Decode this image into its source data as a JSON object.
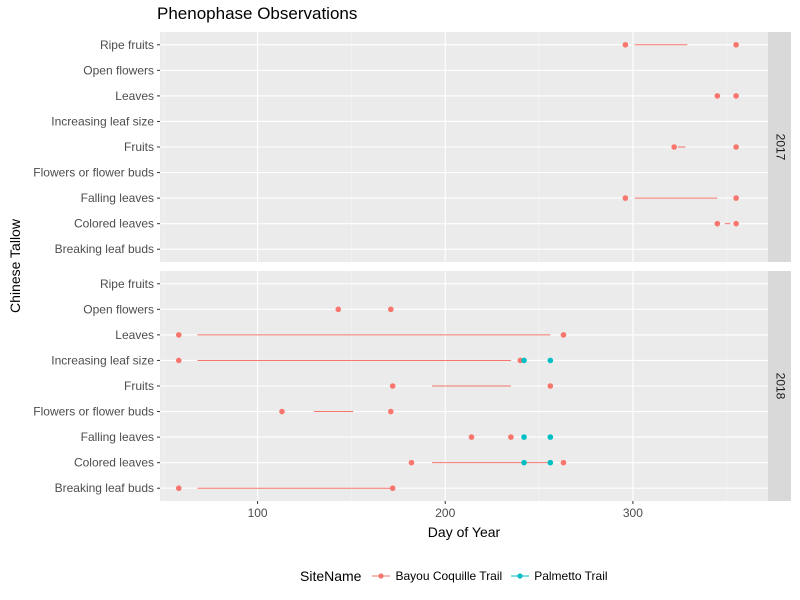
{
  "chart_data": {
    "type": "dot-range",
    "title": "Phenophase Observations",
    "xlabel": "Day of Year",
    "ylabel": "Chinese Tallow",
    "xlim": [
      48,
      372
    ],
    "xticks": [
      100,
      200,
      300
    ],
    "categories": [
      "Breaking leaf buds",
      "Colored leaves",
      "Falling leaves",
      "Flowers or flower buds",
      "Fruits",
      "Increasing leaf size",
      "Leaves",
      "Open flowers",
      "Ripe fruits"
    ],
    "legend": {
      "title": "SiteName",
      "position": "bottom",
      "entries": [
        {
          "name": "Bayou Coquille Trail",
          "color": "#F8766D"
        },
        {
          "name": "Palmetto Trail",
          "color": "#00BFC4"
        }
      ]
    },
    "facets": [
      {
        "label": "2017",
        "segments": [
          {
            "category": "Ripe fruits",
            "site": "Bayou Coquille Trail",
            "x1": 301,
            "x2": 329
          },
          {
            "category": "Fruits",
            "site": "Bayou Coquille Trail",
            "x1": 324,
            "x2": 328
          },
          {
            "category": "Falling leaves",
            "site": "Bayou Coquille Trail",
            "x1": 301,
            "x2": 345
          },
          {
            "category": "Colored leaves",
            "site": "Bayou Coquille Trail",
            "x1": 349,
            "x2": 352
          }
        ],
        "points": [
          {
            "category": "Ripe fruits",
            "site": "Bayou Coquille Trail",
            "x": 296
          },
          {
            "category": "Ripe fruits",
            "site": "Bayou Coquille Trail",
            "x": 355
          },
          {
            "category": "Leaves",
            "site": "Bayou Coquille Trail",
            "x": 345
          },
          {
            "category": "Leaves",
            "site": "Bayou Coquille Trail",
            "x": 355
          },
          {
            "category": "Fruits",
            "site": "Bayou Coquille Trail",
            "x": 322
          },
          {
            "category": "Fruits",
            "site": "Bayou Coquille Trail",
            "x": 355
          },
          {
            "category": "Falling leaves",
            "site": "Bayou Coquille Trail",
            "x": 296
          },
          {
            "category": "Falling leaves",
            "site": "Bayou Coquille Trail",
            "x": 355
          },
          {
            "category": "Colored leaves",
            "site": "Bayou Coquille Trail",
            "x": 345
          },
          {
            "category": "Colored leaves",
            "site": "Bayou Coquille Trail",
            "x": 355
          }
        ]
      },
      {
        "label": "2018",
        "segments": [
          {
            "category": "Leaves",
            "site": "Bayou Coquille Trail",
            "x1": 68,
            "x2": 256
          },
          {
            "category": "Increasing leaf size",
            "site": "Bayou Coquille Trail",
            "x1": 68,
            "x2": 235
          },
          {
            "category": "Fruits",
            "site": "Bayou Coquille Trail",
            "x1": 193,
            "x2": 235
          },
          {
            "category": "Flowers or flower buds",
            "site": "Bayou Coquille Trail",
            "x1": 130,
            "x2": 151
          },
          {
            "category": "Colored leaves",
            "site": "Bayou Coquille Trail",
            "x1": 193,
            "x2": 256
          },
          {
            "category": "Breaking leaf buds",
            "site": "Bayou Coquille Trail",
            "x1": 68,
            "x2": 172
          }
        ],
        "points": [
          {
            "category": "Open flowers",
            "site": "Bayou Coquille Trail",
            "x": 143
          },
          {
            "category": "Open flowers",
            "site": "Bayou Coquille Trail",
            "x": 171
          },
          {
            "category": "Leaves",
            "site": "Bayou Coquille Trail",
            "x": 58
          },
          {
            "category": "Leaves",
            "site": "Bayou Coquille Trail",
            "x": 263
          },
          {
            "category": "Increasing leaf size",
            "site": "Bayou Coquille Trail",
            "x": 58
          },
          {
            "category": "Increasing leaf size",
            "site": "Bayou Coquille Trail",
            "x": 240
          },
          {
            "category": "Increasing leaf size",
            "site": "Palmetto Trail",
            "x": 242
          },
          {
            "category": "Increasing leaf size",
            "site": "Palmetto Trail",
            "x": 256
          },
          {
            "category": "Fruits",
            "site": "Bayou Coquille Trail",
            "x": 172
          },
          {
            "category": "Fruits",
            "site": "Bayou Coquille Trail",
            "x": 256
          },
          {
            "category": "Flowers or flower buds",
            "site": "Bayou Coquille Trail",
            "x": 113
          },
          {
            "category": "Flowers or flower buds",
            "site": "Bayou Coquille Trail",
            "x": 171
          },
          {
            "category": "Falling leaves",
            "site": "Bayou Coquille Trail",
            "x": 214
          },
          {
            "category": "Falling leaves",
            "site": "Bayou Coquille Trail",
            "x": 235
          },
          {
            "category": "Falling leaves",
            "site": "Palmetto Trail",
            "x": 242
          },
          {
            "category": "Falling leaves",
            "site": "Palmetto Trail",
            "x": 256
          },
          {
            "category": "Colored leaves",
            "site": "Bayou Coquille Trail",
            "x": 182
          },
          {
            "category": "Colored leaves",
            "site": "Bayou Coquille Trail",
            "x": 263
          },
          {
            "category": "Colored leaves",
            "site": "Palmetto Trail",
            "x": 242
          },
          {
            "category": "Colored leaves",
            "site": "Palmetto Trail",
            "x": 256
          },
          {
            "category": "Breaking leaf buds",
            "site": "Bayou Coquille Trail",
            "x": 58
          },
          {
            "category": "Breaking leaf buds",
            "site": "Bayou Coquille Trail",
            "x": 172
          }
        ]
      }
    ]
  }
}
